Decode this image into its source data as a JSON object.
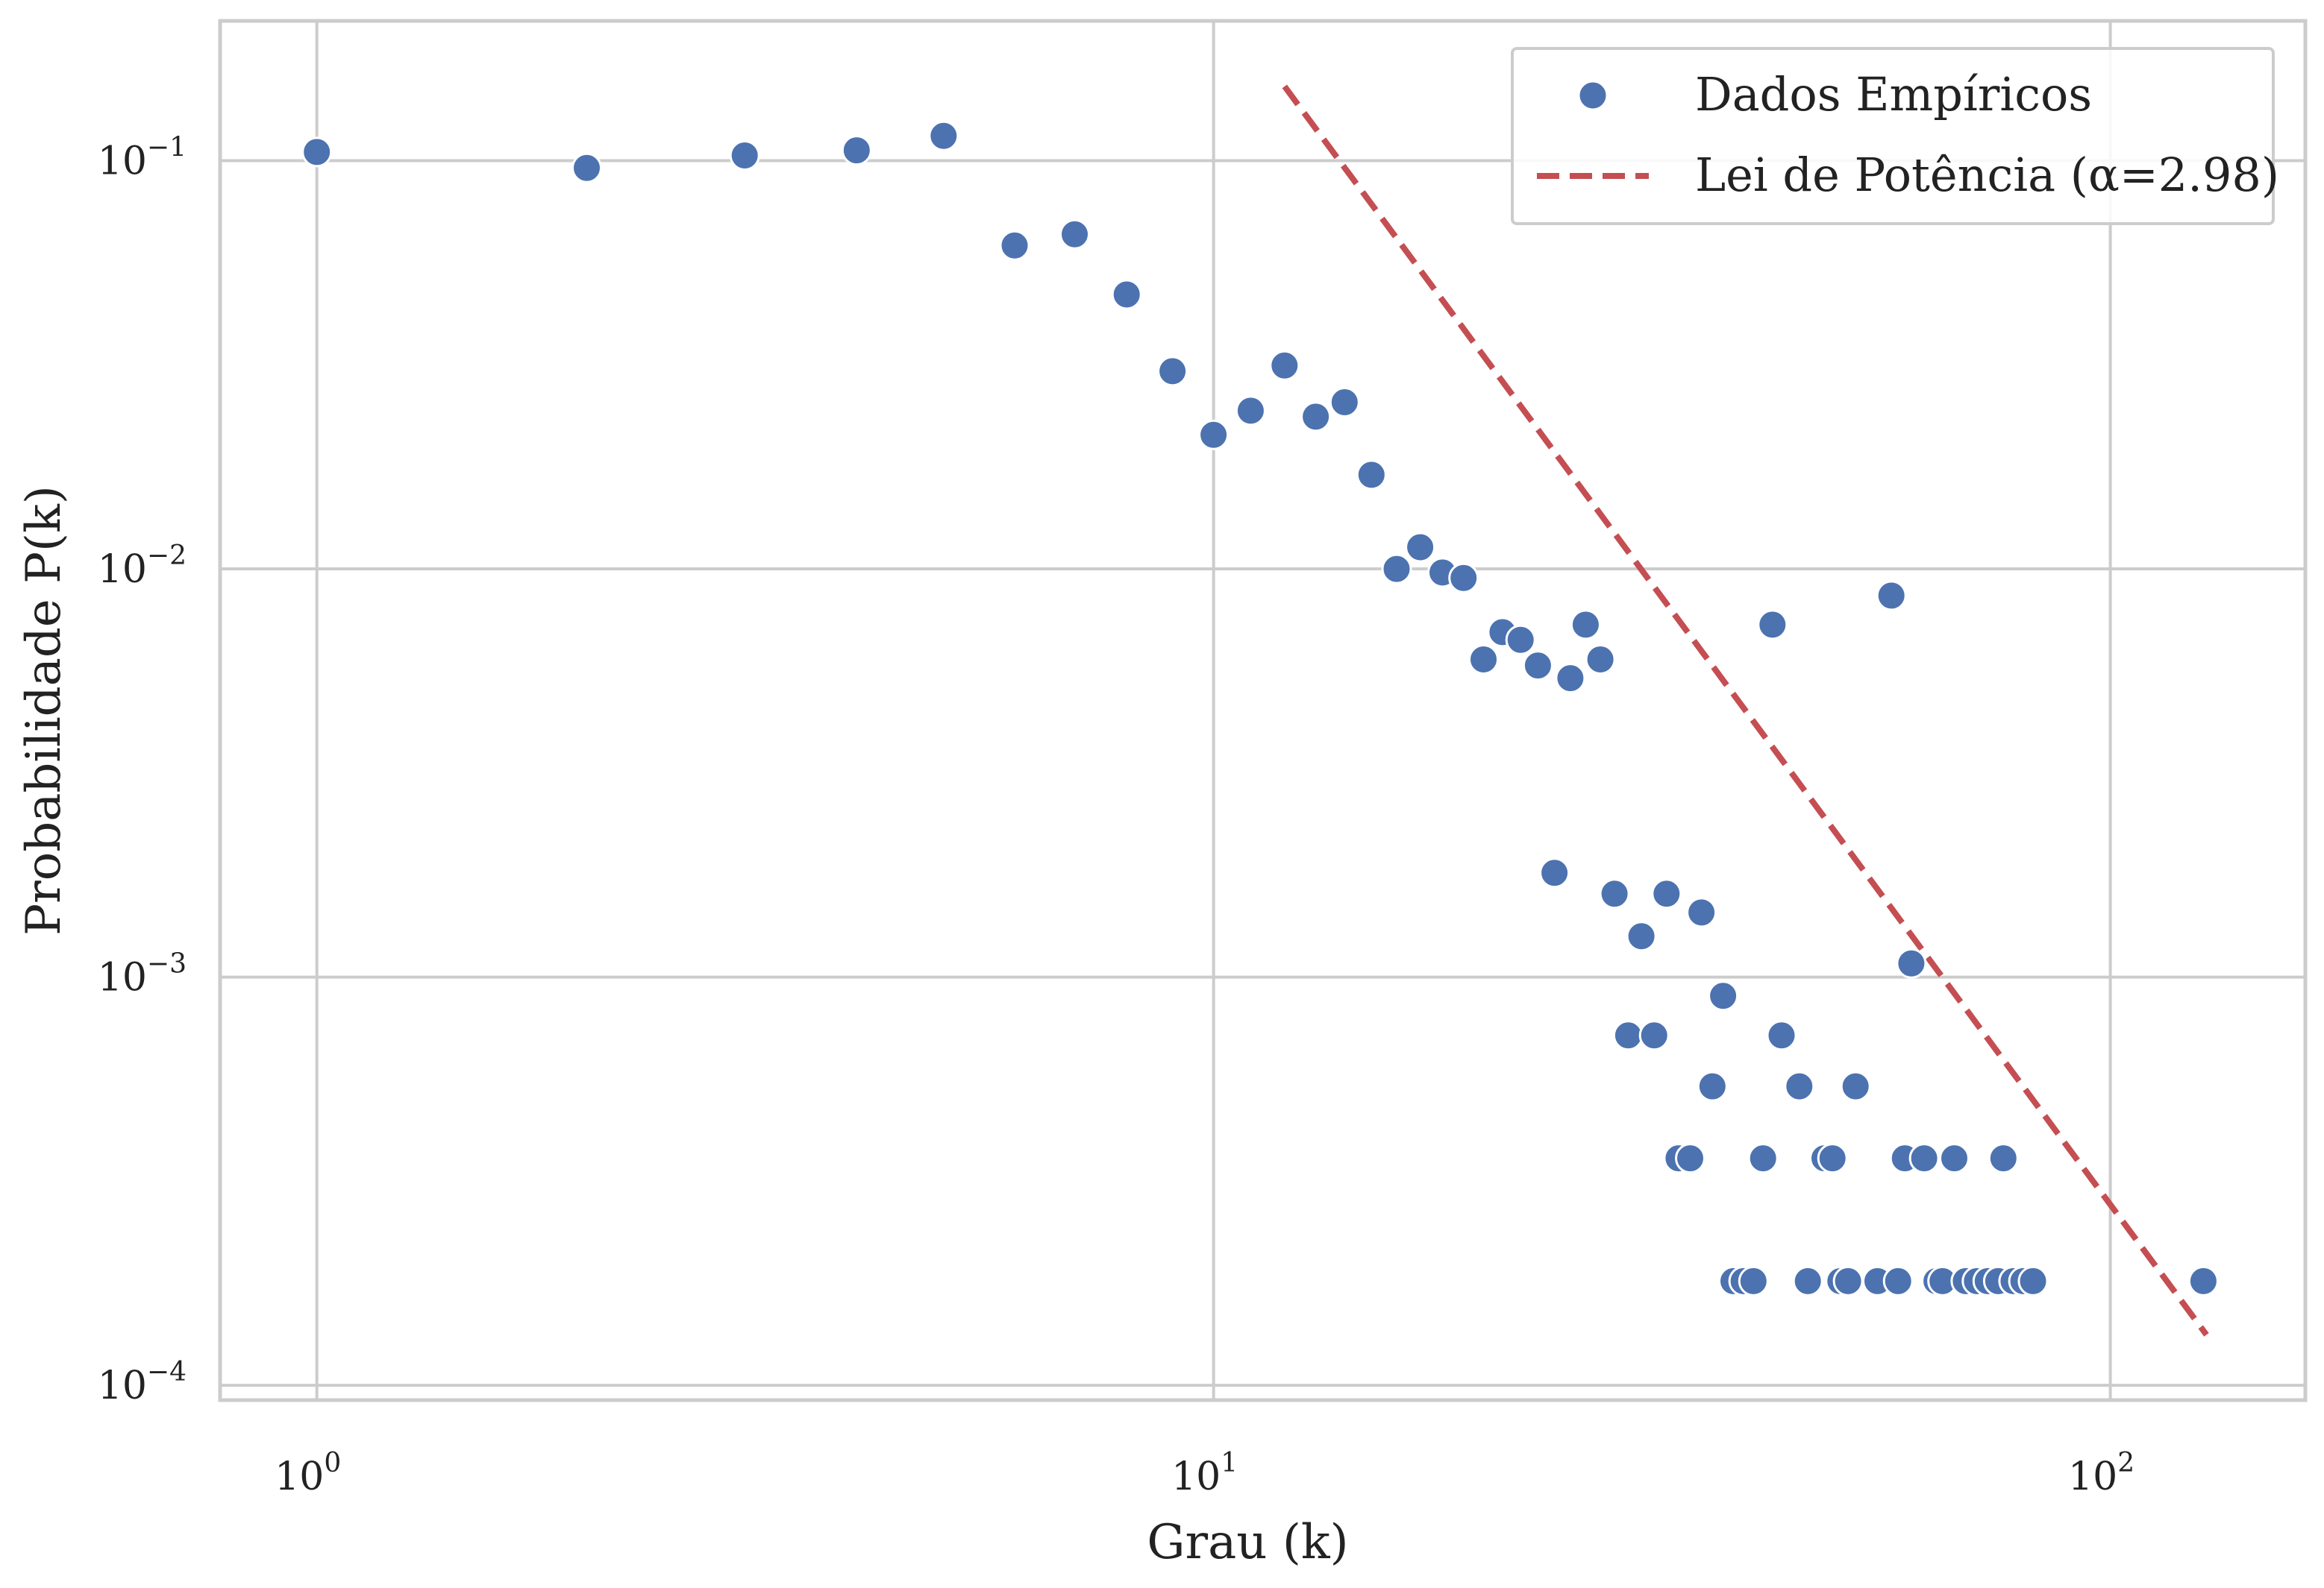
{
  "chart_data": {
    "type": "scatter",
    "xscale": "log",
    "yscale": "log",
    "xlabel": "Grau (k)",
    "ylabel": "Probabilidade P(k)",
    "xlim": [
      0.78,
      165
    ],
    "ylim": [
      9.2e-05,
      0.22
    ],
    "grid": true,
    "legend_position": "top-right",
    "x_ticks": [
      {
        "value": 1,
        "base": "10",
        "exp": "0"
      },
      {
        "value": 10,
        "base": "10",
        "exp": "1"
      },
      {
        "value": 100,
        "base": "10",
        "exp": "2"
      }
    ],
    "y_ticks": [
      {
        "value": 0.1,
        "base": "10",
        "exp": "−1"
      },
      {
        "value": 0.01,
        "base": "10",
        "exp": "−2"
      },
      {
        "value": 0.001,
        "base": "10",
        "exp": "−3"
      },
      {
        "value": 0.0001,
        "base": "10",
        "exp": "−4"
      }
    ],
    "series": [
      {
        "name": "Dados Empíricos",
        "type": "scatter",
        "color": "#4c72b0",
        "points": [
          [
            1,
            0.105
          ],
          [
            2,
            0.096
          ],
          [
            3,
            0.103
          ],
          [
            4,
            0.106
          ],
          [
            5,
            0.115
          ],
          [
            6,
            0.062
          ],
          [
            7,
            0.066
          ],
          [
            8,
            0.047
          ],
          [
            9,
            0.0305
          ],
          [
            10,
            0.0213
          ],
          [
            11,
            0.0244
          ],
          [
            12,
            0.0315
          ],
          [
            13,
            0.0236
          ],
          [
            14,
            0.0256
          ],
          [
            15,
            0.017
          ],
          [
            16,
            0.01
          ],
          [
            17,
            0.0113
          ],
          [
            18,
            0.0098
          ],
          [
            19,
            0.0095
          ],
          [
            20,
            0.006
          ],
          [
            21,
            0.007
          ],
          [
            22,
            0.0067
          ],
          [
            23,
            0.0058
          ],
          [
            24,
            0.0018
          ],
          [
            25,
            0.0054
          ],
          [
            26,
            0.0073
          ],
          [
            27,
            0.006
          ],
          [
            28,
            0.0016
          ],
          [
            29,
            0.00072
          ],
          [
            30,
            0.00126
          ],
          [
            31,
            0.00072
          ],
          [
            32,
            0.0016
          ],
          [
            33,
            0.00036
          ],
          [
            34,
            0.00036
          ],
          [
            35,
            0.00144
          ],
          [
            36,
            0.00054
          ],
          [
            37,
            0.0009
          ],
          [
            38,
            0.00018
          ],
          [
            39,
            0.00018
          ],
          [
            40,
            0.00018
          ],
          [
            41,
            0.00036
          ],
          [
            42,
            0.0073
          ],
          [
            43,
            0.00072
          ],
          [
            45,
            0.00054
          ],
          [
            46,
            0.00018
          ],
          [
            48,
            0.00036
          ],
          [
            49,
            0.00036
          ],
          [
            50,
            0.00018
          ],
          [
            51,
            0.00018
          ],
          [
            52,
            0.00054
          ],
          [
            55,
            0.00018
          ],
          [
            57,
            0.0086
          ],
          [
            58,
            0.00018
          ],
          [
            59,
            0.00036
          ],
          [
            60,
            0.00108
          ],
          [
            62,
            0.00036
          ],
          [
            64,
            0.00018
          ],
          [
            65,
            0.00018
          ],
          [
            67,
            0.00036
          ],
          [
            69,
            0.00018
          ],
          [
            71,
            0.00018
          ],
          [
            73,
            0.00018
          ],
          [
            75,
            0.00018
          ],
          [
            76,
            0.00036
          ],
          [
            78,
            0.00018
          ],
          [
            80,
            0.00018
          ],
          [
            82,
            0.00018
          ],
          [
            127,
            0.00018
          ]
        ]
      },
      {
        "name": "Lei de Potência (α=2.98)",
        "type": "line",
        "style": "dashed",
        "color": "#c44e52",
        "points": [
          [
            12,
            0.152
          ],
          [
            128,
            0.000133
          ]
        ]
      }
    ]
  }
}
